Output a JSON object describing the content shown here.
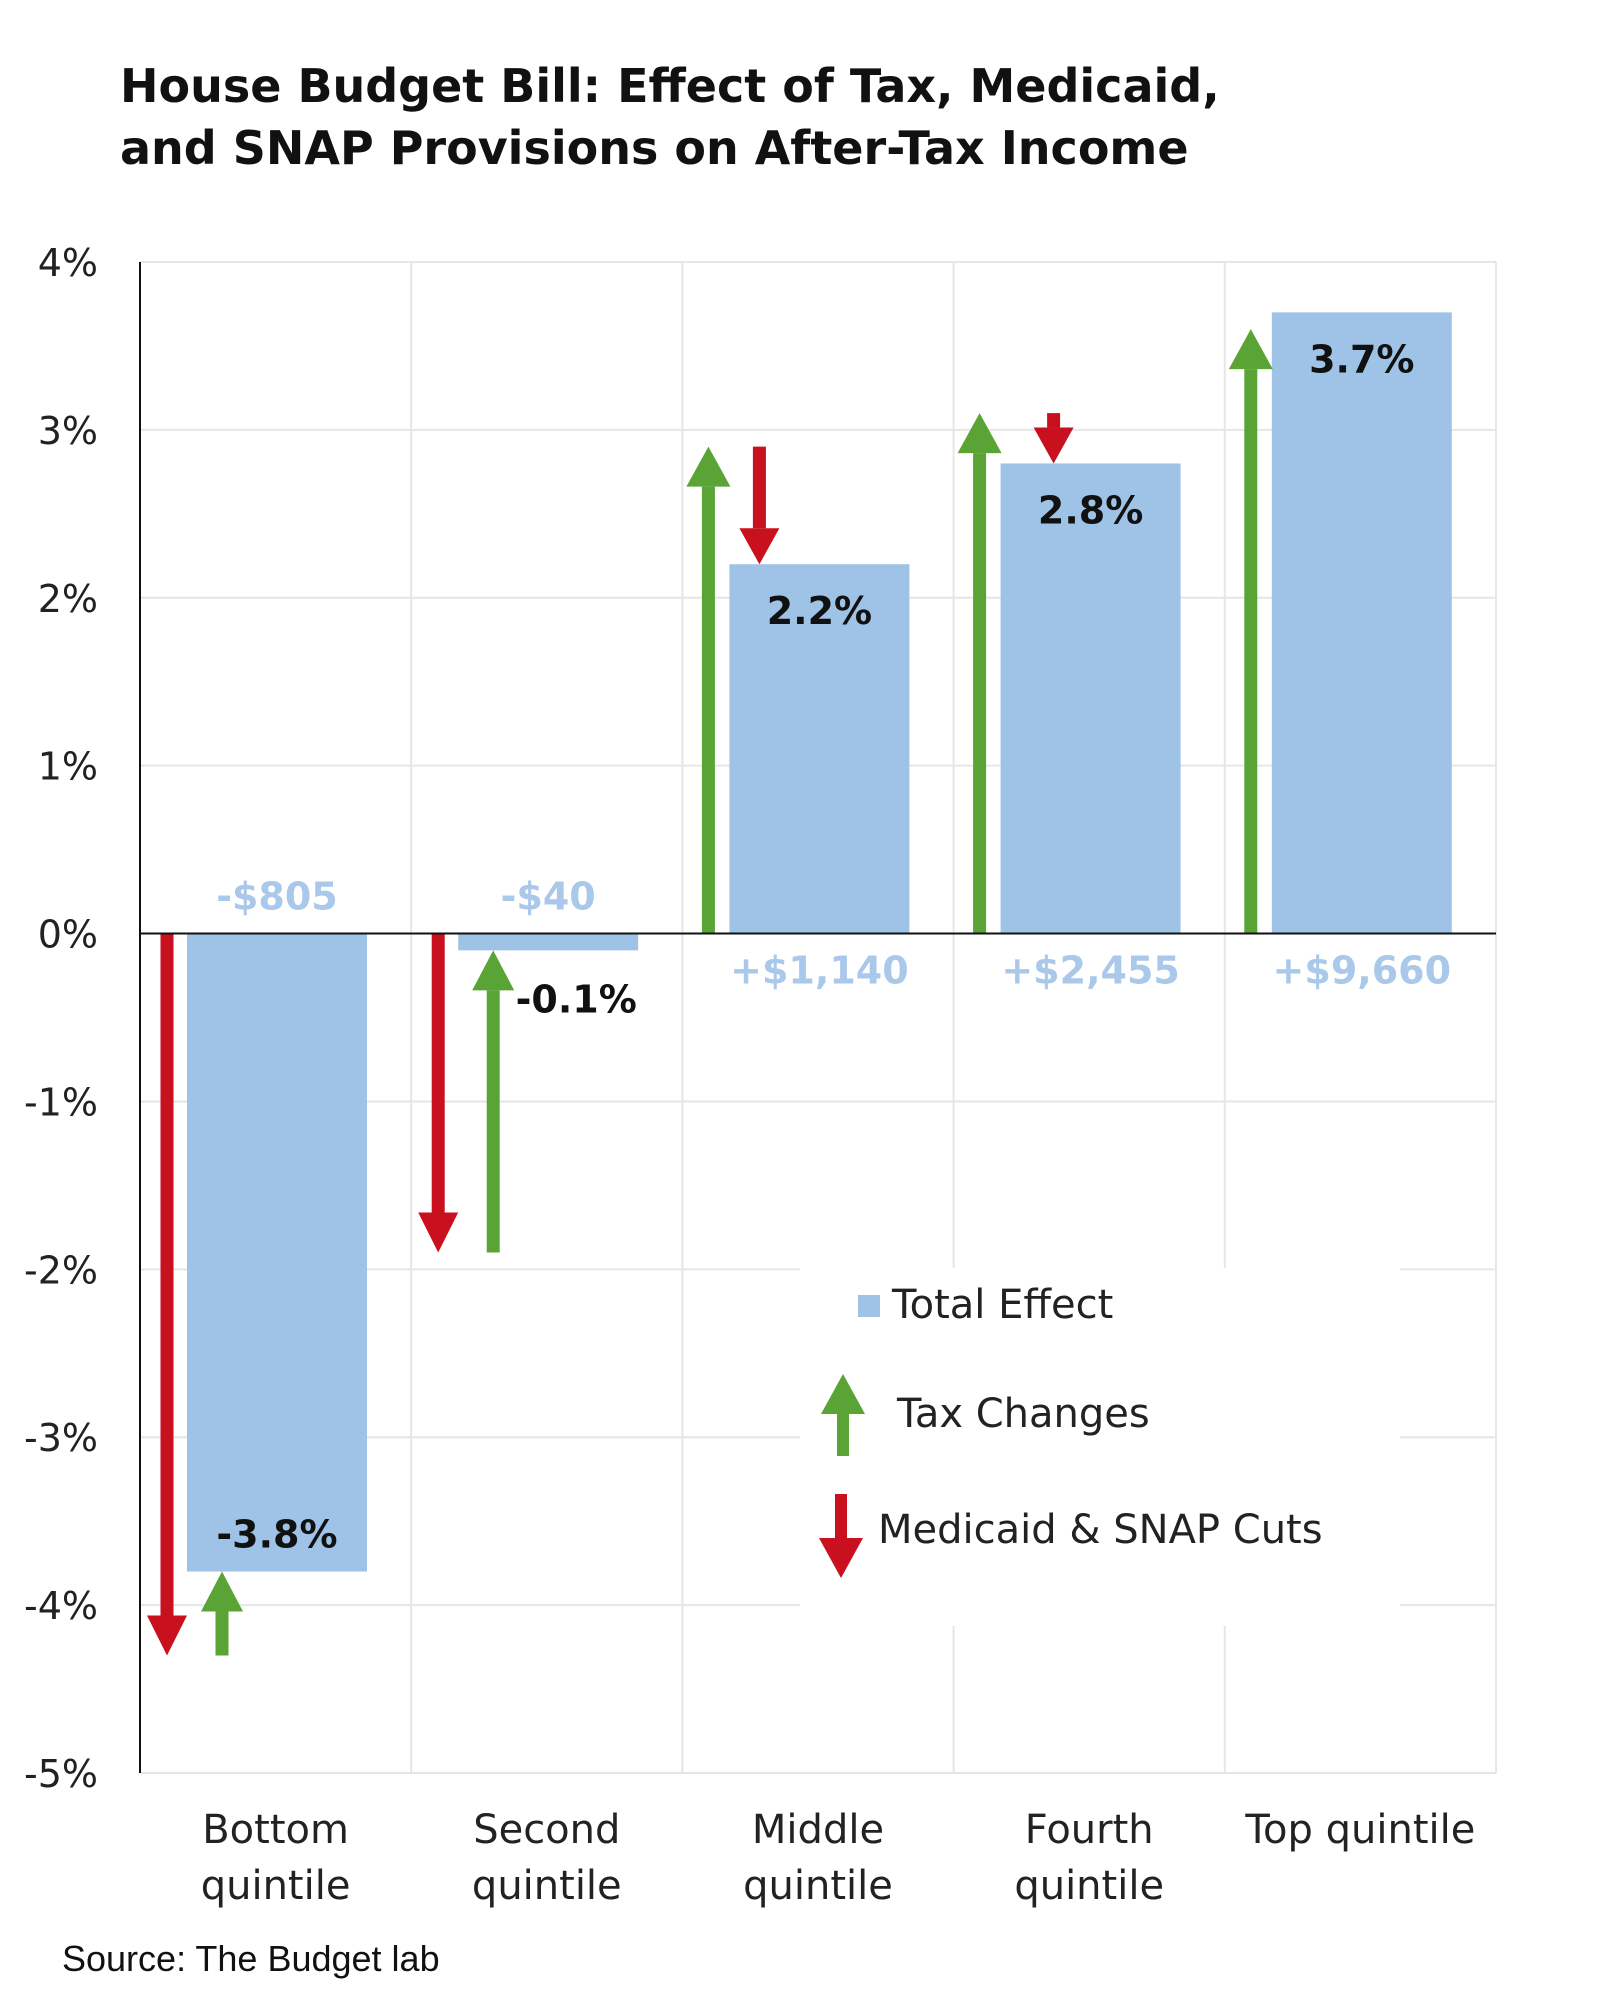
{
  "title": {
    "line1": "House Budget Bill: Effect of Tax, Medicaid,",
    "line2": "and SNAP Provisions on After-Tax Income"
  },
  "source": "Source: The Budget lab",
  "colors": {
    "total_effect": "#9fc3e7",
    "tax_changes": "#5aa335",
    "cuts": "#c8101e",
    "dollar_label": "#a9c8ea",
    "gridline": "#e6e6e6",
    "axis": "#111111"
  },
  "chart_data": {
    "type": "bar",
    "title": "House Budget Bill: Effect of Tax, Medicaid, and SNAP Provisions on After-Tax Income",
    "categories": [
      [
        "Bottom",
        "quintile"
      ],
      [
        "Second",
        "quintile"
      ],
      [
        "Middle",
        "quintile"
      ],
      [
        "Fourth",
        "quintile"
      ],
      [
        "Top quintile"
      ]
    ],
    "ylim": [
      -5,
      4
    ],
    "yticks": [
      4,
      3,
      2,
      1,
      0,
      -1,
      -2,
      -3,
      -4,
      -5
    ],
    "ytick_labels": [
      "4%",
      "3%",
      "2%",
      "1%",
      "0%",
      "-1%",
      "-2%",
      "-3%",
      "-4%",
      "-5%"
    ],
    "grid": true,
    "series": [
      {
        "name": "Total Effect",
        "kind": "bar",
        "values": [
          -3.8,
          -0.1,
          2.2,
          2.8,
          3.7
        ]
      },
      {
        "name": "Tax Changes",
        "kind": "arrow",
        "values": [
          0.5,
          1.8,
          2.9,
          3.1,
          3.6
        ]
      },
      {
        "name": "Medicaid & SNAP Cuts",
        "kind": "arrow",
        "values": [
          -4.3,
          -1.9,
          -0.7,
          -0.3,
          0
        ]
      }
    ],
    "value_labels": [
      "-3.8%",
      "-0.1%",
      "2.2%",
      "2.8%",
      "3.7%"
    ],
    "dollar_labels": [
      "-$805",
      "-$40",
      "+$1,140",
      "+$2,455",
      "+$9,660"
    ],
    "legend": {
      "placement": "bottom-right",
      "entries": [
        "Total Effect",
        "Tax Changes",
        "Medicaid & SNAP Cuts"
      ]
    }
  }
}
